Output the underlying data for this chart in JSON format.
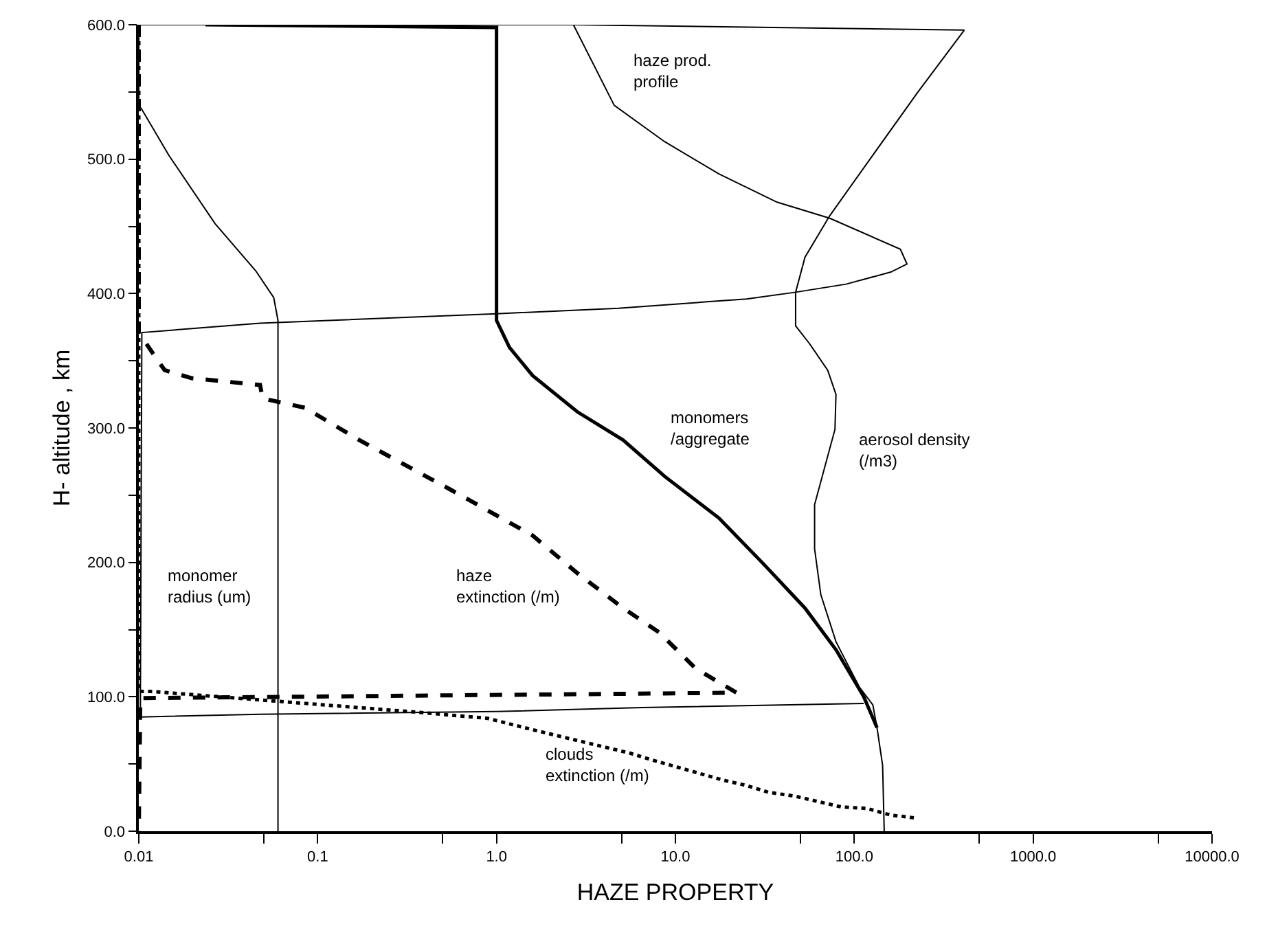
{
  "chart_data": {
    "type": "line",
    "xlabel": "HAZE PROPERTY",
    "ylabel": "H- altitude , km",
    "log": "x",
    "legend": false,
    "marker": "none",
    "xlim": [
      0.01,
      10000
    ],
    "ylim": [
      0,
      600
    ],
    "xticks": [
      {
        "value": 0.01,
        "label": "0.01"
      },
      {
        "value": 0.05,
        "label": null
      },
      {
        "value": 0.1,
        "label": "0.1"
      },
      {
        "value": 0.5,
        "label": null
      },
      {
        "value": 1,
        "label": "1.0"
      },
      {
        "value": 5,
        "label": null
      },
      {
        "value": 10,
        "label": "10.0"
      },
      {
        "value": 50,
        "label": null
      },
      {
        "value": 100,
        "label": "100.0"
      },
      {
        "value": 500,
        "label": null
      },
      {
        "value": 1000,
        "label": "1000.0"
      },
      {
        "value": 5000,
        "label": null
      },
      {
        "value": 10000,
        "label": "10000.0"
      }
    ],
    "yticks": [
      {
        "value": 0,
        "label": "0.0"
      },
      {
        "value": 50,
        "label": null
      },
      {
        "value": 100,
        "label": "100.0"
      },
      {
        "value": 150,
        "label": null
      },
      {
        "value": 200,
        "label": "200.0"
      },
      {
        "value": 250,
        "label": null
      },
      {
        "value": 300,
        "label": "300.0"
      },
      {
        "value": 350,
        "label": null
      },
      {
        "value": 400,
        "label": "400.0"
      },
      {
        "value": 450,
        "label": null
      },
      {
        "value": 500,
        "label": "500.0"
      },
      {
        "value": 550,
        "label": null
      },
      {
        "value": 600,
        "label": "600.0"
      }
    ],
    "series": [
      {
        "name": "monomer\nradius (um)",
        "color": "#000000",
        "line_style": "solid",
        "x": [
          0.01,
          0.01,
          0.0104,
          0.0147,
          0.0267,
          0.045,
          0.0568,
          0.06,
          0.06
        ],
        "values": [
          600,
          540,
          537,
          503,
          452,
          417,
          397,
          380,
          0
        ]
      },
      {
        "name": "haze prod.\nprofile",
        "color": "#000000",
        "line_style": "solid",
        "x": [
          0.01,
          2.69,
          4.55,
          8.7,
          17.5,
          37,
          73,
          181,
          197,
          160,
          90,
          47,
          25,
          15.5,
          4.8,
          1.0,
          0.0476,
          0.0104,
          0.0102,
          0.0476,
          1.0,
          6.5,
          113
        ],
        "values": [
          600,
          600,
          540,
          513,
          489,
          468,
          456,
          433,
          422,
          416,
          407,
          401,
          396,
          394,
          389,
          385,
          378,
          371,
          85,
          87,
          89,
          92,
          95
        ]
      },
      {
        "name": "aerosol density\n(/m3)",
        "color": "#000000",
        "line_style": "solid",
        "x": [
          2.69,
          412,
          227,
          127,
          73,
          53,
          47,
          47,
          56,
          71,
          79,
          78,
          60,
          60,
          65,
          79,
          107,
          127,
          134,
          144,
          147
        ],
        "values": [
          600,
          596,
          550,
          503,
          458,
          427,
          401,
          376,
          363,
          343,
          325,
          299,
          243,
          210,
          176,
          141,
          107,
          94,
          77,
          49,
          0
        ]
      },
      {
        "name": "monomers\n/aggregate",
        "color": "#000000",
        "line_style": "solid",
        "x": [
          0.0236,
          1.0,
          1.0,
          1.18,
          1.59,
          2.83,
          5.1,
          8.7,
          17.5,
          31,
          53,
          79,
          113,
          134
        ],
        "values": [
          600,
          598,
          380,
          360,
          339,
          312,
          291,
          264,
          233,
          199,
          166,
          135,
          100,
          77
        ]
      },
      {
        "name": "haze\nextinction (/m)",
        "color": "#000000",
        "line_style": "dashed",
        "x": [
          0.01,
          0.01,
          0.01234,
          0.01396,
          0.0198,
          0.0476,
          0.0493,
          0.085,
          0.171,
          0.555,
          1.59,
          2.83,
          5.1,
          8.1,
          13.0,
          22,
          0.0102,
          0.01
        ],
        "values": [
          600,
          371,
          353,
          343,
          337,
          332,
          322,
          315,
          291,
          254,
          220,
          192,
          166,
          148,
          121,
          103,
          99,
          0
        ]
      },
      {
        "name": "clouds\nextinction (/m)",
        "color": "#000000",
        "line_style": "dotted",
        "x": [
          0.01,
          0.01,
          0.0117,
          0.328,
          0.89,
          1.65,
          5.6,
          7.4,
          18.5,
          25,
          33,
          47,
          63,
          85,
          117,
          160,
          216
        ],
        "values": [
          600,
          104,
          104,
          89,
          84,
          75,
          58,
          53,
          38,
          34,
          29,
          26,
          22,
          18,
          17,
          12,
          10
        ]
      }
    ]
  }
}
